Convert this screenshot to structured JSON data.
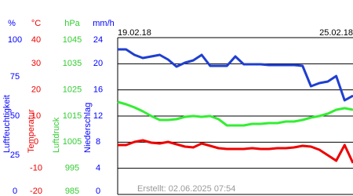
{
  "chart_data": {
    "type": "line",
    "x": [
      0,
      0.25,
      0.5,
      0.75,
      1,
      1.25,
      1.5,
      1.75,
      2,
      2.25,
      2.5,
      2.75,
      3,
      3.25,
      3.5,
      3.75,
      4,
      4.25,
      4.5,
      4.75,
      5,
      5.25,
      5.5,
      5.75,
      6,
      6.25,
      6.5,
      6.75,
      7
    ],
    "xlim": [
      0,
      7
    ],
    "xticks": [
      {
        "value": 0,
        "label": "19.02.18"
      },
      {
        "value": 6,
        "label": "25.02.18"
      }
    ],
    "grid": true,
    "footer": "Erstellt: 02.06.2025 07:54",
    "axes": [
      {
        "unit": "%",
        "title": "Luftfeuchtigkeit",
        "color": "#0000ff",
        "ylim": [
          0,
          100
        ],
        "yticks": [
          100,
          75,
          50,
          25,
          0
        ],
        "line_color": "#1f3fd0",
        "values": [
          92.5,
          92.5,
          89,
          87,
          88,
          89,
          86,
          81.5,
          84,
          85.5,
          89,
          82,
          82,
          82,
          88,
          83,
          83,
          83,
          82.5,
          82.5,
          82.5,
          82.5,
          82,
          69,
          71,
          72,
          75.5,
          60,
          63
        ]
      },
      {
        "unit": "°C",
        "title": "Temperatur",
        "color": "#ee0000",
        "ylim": [
          -20,
          40
        ],
        "yticks": [
          40,
          30,
          20,
          10,
          0,
          -10,
          -20
        ],
        "line_color": "#ee0000",
        "values": [
          -1.1,
          -1.1,
          0.1,
          0.7,
          -0.2,
          -0.5,
          0.1,
          -0.8,
          -1.7,
          -2,
          -0.5,
          -1.4,
          -2.3,
          -2.6,
          -2.6,
          -2.6,
          -2.3,
          -2.6,
          -2.6,
          -2.3,
          -2.3,
          -2,
          -1.4,
          -1.7,
          -2.9,
          -5,
          -7.1,
          -1.1,
          -8
        ]
      },
      {
        "unit": "hPa",
        "title": "Luftdruck",
        "color": "#33cc33",
        "ylim": [
          985,
          1045
        ],
        "yticks": [
          1045,
          1035,
          1025,
          1015,
          1005,
          995,
          985
        ],
        "line_color": "#33ee33",
        "values": [
          1020.4,
          1019.5,
          1018.3,
          1016.8,
          1015,
          1013.5,
          1013.5,
          1013.8,
          1014.7,
          1015,
          1014.7,
          1015,
          1013.8,
          1011.4,
          1011.4,
          1011.4,
          1012,
          1012,
          1012.3,
          1012.3,
          1012.9,
          1012.9,
          1013.5,
          1014.4,
          1015,
          1015.9,
          1017.4,
          1018,
          1017.4
        ]
      },
      {
        "unit": "mm/h",
        "title": "Niederschlag",
        "color": "#0000ff",
        "ylim": [
          0,
          24
        ],
        "yticks": [
          24,
          20,
          16,
          12,
          8,
          4,
          0
        ]
      }
    ]
  }
}
